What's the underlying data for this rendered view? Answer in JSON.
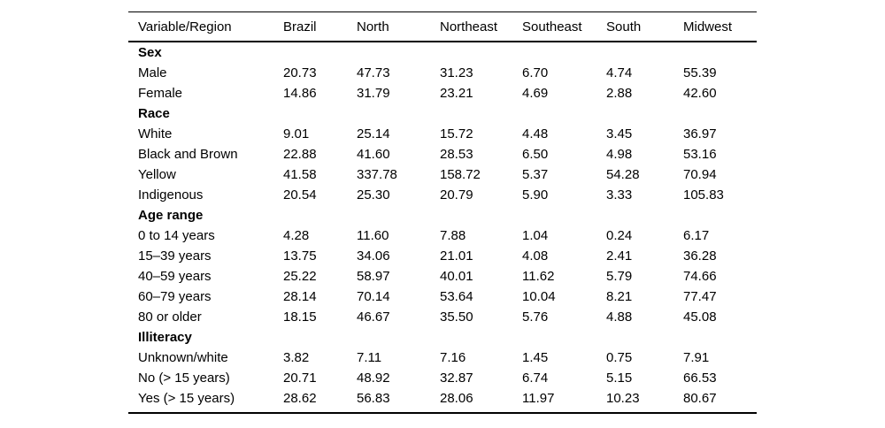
{
  "chart_data": {
    "type": "table",
    "columns": [
      "Variable/Region",
      "Brazil",
      "North",
      "Northeast",
      "Southeast",
      "South",
      "Midwest"
    ],
    "sections": [
      {
        "header": "Sex",
        "rows": [
          {
            "label": "Male",
            "values": [
              "20.73",
              "47.73",
              "31.23",
              "6.70",
              "4.74",
              "55.39"
            ]
          },
          {
            "label": "Female",
            "values": [
              "14.86",
              "31.79",
              "23.21",
              "4.69",
              "2.88",
              "42.60"
            ]
          }
        ]
      },
      {
        "header": "Race",
        "rows": [
          {
            "label": "White",
            "values": [
              "9.01",
              "25.14",
              "15.72",
              "4.48",
              "3.45",
              "36.97"
            ]
          },
          {
            "label": "Black and Brown",
            "values": [
              "22.88",
              "41.60",
              "28.53",
              "6.50",
              "4.98",
              "53.16"
            ]
          },
          {
            "label": "Yellow",
            "values": [
              "41.58",
              "337.78",
              "158.72",
              "5.37",
              "54.28",
              "70.94"
            ]
          },
          {
            "label": "Indigenous",
            "values": [
              "20.54",
              "25.30",
              "20.79",
              "5.90",
              "3.33",
              "105.83"
            ]
          }
        ]
      },
      {
        "header": "Age range",
        "rows": [
          {
            "label": "0 to 14 years",
            "values": [
              "4.28",
              "11.60",
              "7.88",
              "1.04",
              "0.24",
              "6.17"
            ]
          },
          {
            "label": "15–39 years",
            "values": [
              "13.75",
              "34.06",
              "21.01",
              "4.08",
              "2.41",
              "36.28"
            ]
          },
          {
            "label": "40–59 years",
            "values": [
              "25.22",
              "58.97",
              "40.01",
              "11.62",
              "5.79",
              "74.66"
            ]
          },
          {
            "label": "60–79 years",
            "values": [
              "28.14",
              "70.14",
              "53.64",
              "10.04",
              "8.21",
              "77.47"
            ]
          },
          {
            "label": "80 or older",
            "values": [
              "18.15",
              "46.67",
              "35.50",
              "5.76",
              "4.88",
              "45.08"
            ]
          }
        ]
      },
      {
        "header": "Illiteracy",
        "rows": [
          {
            "label": "Unknown/white",
            "values": [
              "3.82",
              "7.11",
              "7.16",
              "1.45",
              "0.75",
              "7.91"
            ]
          },
          {
            "label": "No (> 15 years)",
            "values": [
              "20.71",
              "48.92",
              "32.87",
              "6.74",
              "5.15",
              "66.53"
            ]
          },
          {
            "label": "Yes (> 15 years)",
            "values": [
              "28.62",
              "56.83",
              "28.06",
              "11.97",
              "10.23",
              "80.67"
            ]
          }
        ]
      }
    ],
    "layout": {
      "text_color": "#000000",
      "background": "#ffffff",
      "rule_color": "#000000"
    }
  }
}
